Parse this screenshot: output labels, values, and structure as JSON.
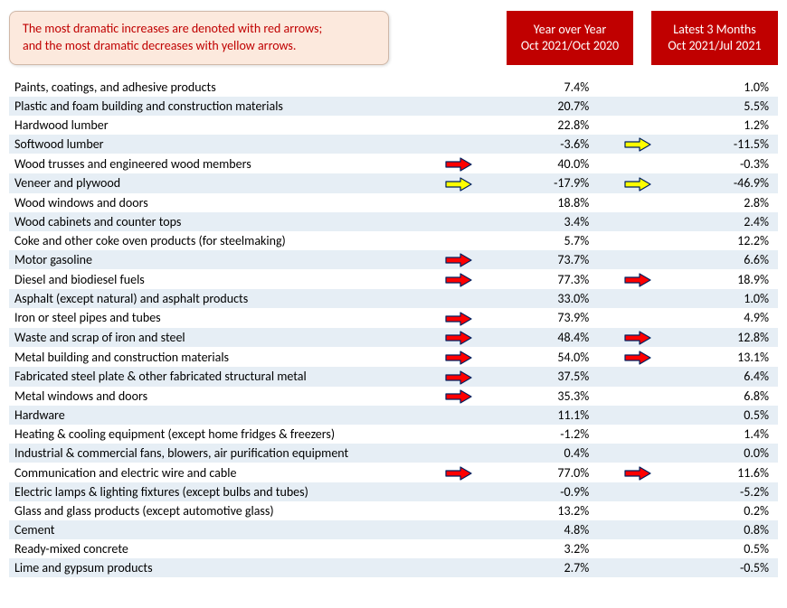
{
  "note": {
    "line1": "The most dramatic increases are denoted with red arrows;",
    "line2": "and the most dramatic decreases with yellow arrows."
  },
  "headers": {
    "yoy": {
      "line1": "Year over Year",
      "line2": "Oct 2021/Oct 2020"
    },
    "l3m": {
      "line1": "Latest 3 Months",
      "line2": "Oct 2021/Jul 2021"
    }
  },
  "colors": {
    "header_bg": "#c00000",
    "header_fg": "#ffffff",
    "note_bg": "#fce9dd",
    "note_fg": "#c00000",
    "row_odd": "#e6eef5",
    "row_even": "#ffffff",
    "arrow_red_fill": "#ff0000",
    "arrow_red_stroke": "#002060",
    "arrow_yellow_fill": "#ffff00",
    "arrow_yellow_stroke": "#002060"
  },
  "rows": [
    {
      "label": "Paints, coatings, and adhesive products",
      "yoy_arrow": null,
      "yoy": "7.4%",
      "l3m_arrow": null,
      "l3m": "1.0%"
    },
    {
      "label": "Plastic and foam building and construction materials",
      "yoy_arrow": null,
      "yoy": "20.7%",
      "l3m_arrow": null,
      "l3m": "5.5%"
    },
    {
      "label": "Hardwood lumber",
      "yoy_arrow": null,
      "yoy": "22.8%",
      "l3m_arrow": null,
      "l3m": "1.2%"
    },
    {
      "label": "Softwood lumber",
      "yoy_arrow": null,
      "yoy": "-3.6%",
      "l3m_arrow": "yellow",
      "l3m": "-11.5%"
    },
    {
      "label": "Wood trusses and engineered wood members",
      "yoy_arrow": "red",
      "yoy": "40.0%",
      "l3m_arrow": null,
      "l3m": "-0.3%"
    },
    {
      "label": "Veneer and plywood",
      "yoy_arrow": "yellow",
      "yoy": "-17.9%",
      "l3m_arrow": "yellow",
      "l3m": "-46.9%"
    },
    {
      "label": "Wood windows and doors",
      "yoy_arrow": null,
      "yoy": "18.8%",
      "l3m_arrow": null,
      "l3m": "2.8%"
    },
    {
      "label": "Wood cabinets and counter tops",
      "yoy_arrow": null,
      "yoy": "3.4%",
      "l3m_arrow": null,
      "l3m": "2.4%"
    },
    {
      "label": "Coke and other coke oven products (for steelmaking)",
      "yoy_arrow": null,
      "yoy": "5.7%",
      "l3m_arrow": null,
      "l3m": "12.2%"
    },
    {
      "label": "Motor gasoline",
      "yoy_arrow": "red",
      "yoy": "73.7%",
      "l3m_arrow": null,
      "l3m": "6.6%"
    },
    {
      "label": "Diesel and biodiesel fuels",
      "yoy_arrow": "red",
      "yoy": "77.3%",
      "l3m_arrow": "red",
      "l3m": "18.9%"
    },
    {
      "label": "Asphalt (except natural) and asphalt products",
      "yoy_arrow": null,
      "yoy": "33.0%",
      "l3m_arrow": null,
      "l3m": "1.0%"
    },
    {
      "label": "Iron or steel pipes and tubes",
      "yoy_arrow": "red",
      "yoy": "73.9%",
      "l3m_arrow": null,
      "l3m": "4.9%"
    },
    {
      "label": "Waste and scrap of iron and steel",
      "yoy_arrow": "red",
      "yoy": "48.4%",
      "l3m_arrow": "red",
      "l3m": "12.8%"
    },
    {
      "label": "Metal building and construction materials",
      "yoy_arrow": "red",
      "yoy": "54.0%",
      "l3m_arrow": "red",
      "l3m": "13.1%"
    },
    {
      "label": "Fabricated steel plate & other fabricated structural metal",
      "yoy_arrow": "red",
      "yoy": "37.5%",
      "l3m_arrow": null,
      "l3m": "6.4%"
    },
    {
      "label": "Metal windows and doors",
      "yoy_arrow": "red",
      "yoy": "35.3%",
      "l3m_arrow": null,
      "l3m": "6.8%"
    },
    {
      "label": "Hardware",
      "yoy_arrow": null,
      "yoy": "11.1%",
      "l3m_arrow": null,
      "l3m": "0.5%"
    },
    {
      "label": "Heating & cooling equipment (except home fridges & freezers)",
      "yoy_arrow": null,
      "yoy": "-1.2%",
      "l3m_arrow": null,
      "l3m": "1.4%"
    },
    {
      "label": "Industrial & commercial fans, blowers, air purification equipment",
      "yoy_arrow": null,
      "yoy": "0.4%",
      "l3m_arrow": null,
      "l3m": "0.0%"
    },
    {
      "label": "Communication and electric wire and cable",
      "yoy_arrow": "red",
      "yoy": "77.0%",
      "l3m_arrow": "red",
      "l3m": "11.6%"
    },
    {
      "label": "Electric lamps & lighting fixtures (except bulbs and tubes)",
      "yoy_arrow": null,
      "yoy": "-0.9%",
      "l3m_arrow": null,
      "l3m": "-5.2%"
    },
    {
      "label": "Glass and glass products (except automotive glass)",
      "yoy_arrow": null,
      "yoy": "13.2%",
      "l3m_arrow": null,
      "l3m": "0.2%"
    },
    {
      "label": "Cement",
      "yoy_arrow": null,
      "yoy": "4.8%",
      "l3m_arrow": null,
      "l3m": "0.8%"
    },
    {
      "label": "Ready-mixed concrete",
      "yoy_arrow": null,
      "yoy": "3.2%",
      "l3m_arrow": null,
      "l3m": "0.5%"
    },
    {
      "label": "Lime and gypsum products",
      "yoy_arrow": null,
      "yoy": "2.7%",
      "l3m_arrow": null,
      "l3m": "-0.5%"
    }
  ]
}
